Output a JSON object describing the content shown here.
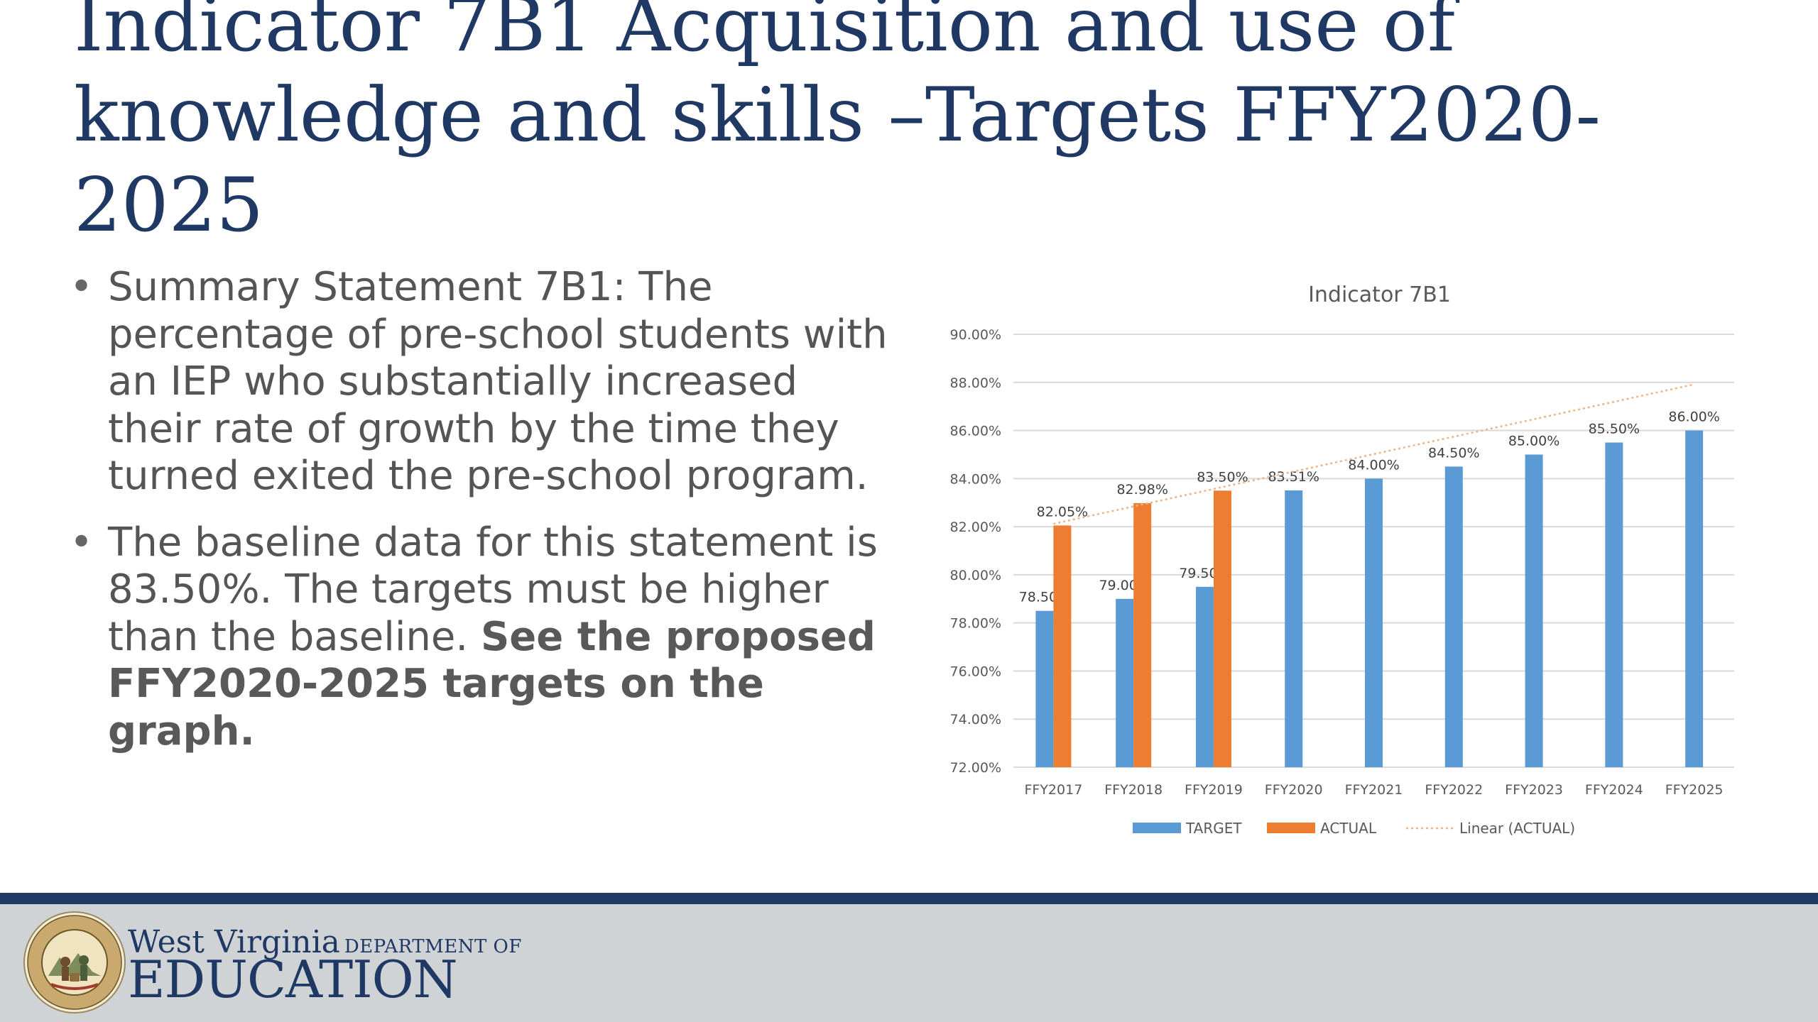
{
  "slide": {
    "title": "Indicator 7B1 Acquisition and use of knowledge and skills –Targets FFY2020-2025",
    "bullet1": "Summary Statement 7B1: The percentage of pre-school students with an IEP who substantially increased their rate of growth by the time they turned exited the pre-school program.",
    "bullet2_text": "The baseline data for this statement is 83.50%.  The targets must be higher than the baseline.",
    "bullet2_bold": "See the proposed FFY2020-2025 targets on the graph."
  },
  "footer": {
    "org_name": "West Virginia",
    "dept_label": "DEPARTMENT OF",
    "org_unit": "EDUCATION",
    "seal_icon": "state-of-west-virginia-seal",
    "colors": {
      "band": "#1f3864",
      "background": "#d0d3d6"
    }
  },
  "chart_data": {
    "type": "bar",
    "title": "Indicator 7B1",
    "categories": [
      "FFY2017",
      "FFY2018",
      "FFY2019",
      "FFY2020",
      "FFY2021",
      "FFY2022",
      "FFY2023",
      "FFY2024",
      "FFY2025"
    ],
    "ylim": [
      72,
      90
    ],
    "yticks": [
      "72.00%",
      "74.00%",
      "76.00%",
      "78.00%",
      "80.00%",
      "82.00%",
      "84.00%",
      "86.00%",
      "88.00%",
      "90.00%"
    ],
    "grid": true,
    "legend_position": "bottom",
    "series": [
      {
        "name": "TARGET",
        "color": "#5b9bd5",
        "values": [
          78.5,
          79.0,
          79.5,
          83.51,
          84.0,
          84.5,
          85.0,
          85.5,
          86.0
        ],
        "labels": [
          "78.50%",
          "79.00%",
          "79.50%",
          "83.51%",
          "84.00%",
          "84.50%",
          "85.00%",
          "85.50%",
          "86.00%"
        ]
      },
      {
        "name": "ACTUAL",
        "color": "#ed7d31",
        "values": [
          82.05,
          82.98,
          83.5,
          null,
          null,
          null,
          null,
          null,
          null
        ],
        "labels": [
          "82.05%",
          "82.98%",
          "83.50%",
          null,
          null,
          null,
          null,
          null,
          null
        ]
      }
    ],
    "trendline": {
      "name": "Linear (ACTUAL)",
      "of": "ACTUAL",
      "type": "linear",
      "style": "dotted",
      "color": "#f4b183"
    }
  }
}
